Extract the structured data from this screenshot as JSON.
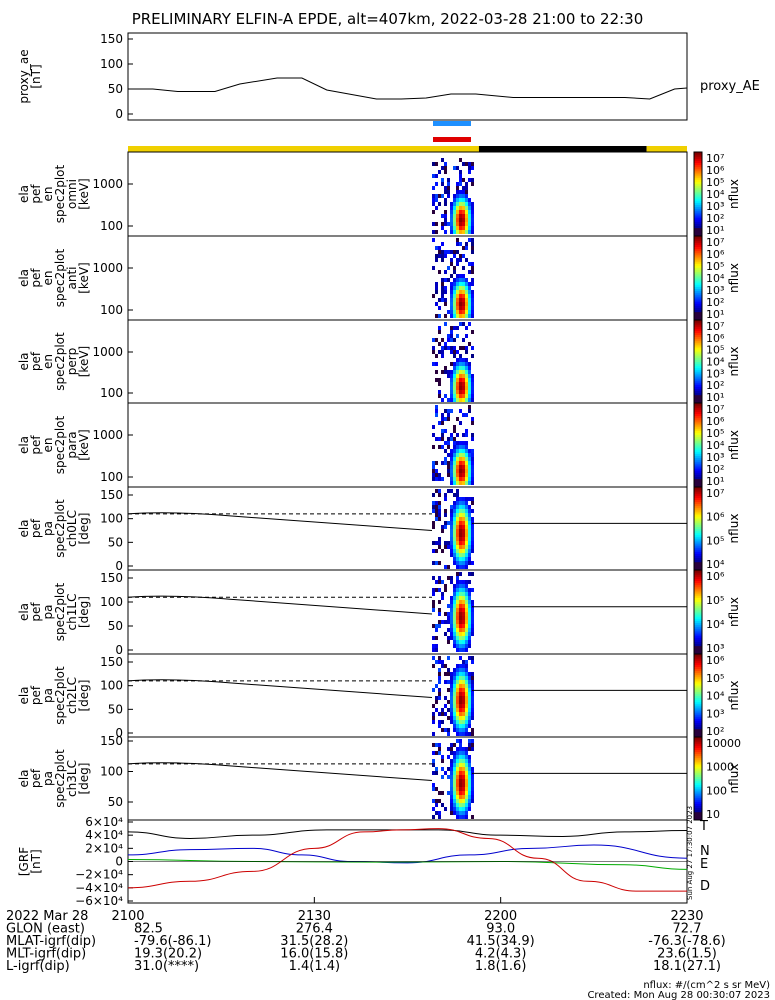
{
  "title": "PRELIMINARY ELFIN-A EPDE, alt=407km, 2022-03-28 21:00 to 22:30",
  "colors": {
    "sunlight": "#f0d000",
    "shadow": "#000000",
    "bar_blue": "#1e90ff",
    "bar_red": "#e00000"
  },
  "panels": [
    {
      "id": "ae",
      "ylabel": [
        "proxy_ae",
        "[nT]"
      ],
      "yticks": [
        "0",
        "50",
        "100",
        "150"
      ],
      "right_label": "proxy_AE"
    },
    {
      "id": "omni",
      "ylabel": [
        "ela",
        "pef",
        "en",
        "spec2plot",
        "omni",
        "[keV]"
      ],
      "yticks": [
        "100",
        "1000"
      ],
      "cbar_ticks": [
        "10¹",
        "10²",
        "10³",
        "10⁴",
        "10⁵",
        "10⁶",
        "10⁷"
      ],
      "cbar_label": "nflux"
    },
    {
      "id": "anti",
      "ylabel": [
        "ela",
        "pef",
        "en",
        "spec2plot",
        "anti",
        "[keV]"
      ],
      "yticks": [
        "100",
        "1000"
      ],
      "cbar_ticks": [
        "10¹",
        "10²",
        "10³",
        "10⁴",
        "10⁵",
        "10⁶",
        "10⁷"
      ],
      "cbar_label": "nflux"
    },
    {
      "id": "perp",
      "ylabel": [
        "ela",
        "pef",
        "en",
        "spec2plot",
        "perp",
        "[keV]"
      ],
      "yticks": [
        "100",
        "1000"
      ],
      "cbar_ticks": [
        "10¹",
        "10²",
        "10³",
        "10⁴",
        "10⁵",
        "10⁶",
        "10⁷"
      ],
      "cbar_label": "nflux"
    },
    {
      "id": "para",
      "ylabel": [
        "ela",
        "pef",
        "en",
        "spec2plot",
        "para",
        "[keV]"
      ],
      "yticks": [
        "100",
        "1000"
      ],
      "cbar_ticks": [
        "10¹",
        "10²",
        "10³",
        "10⁴",
        "10⁵",
        "10⁶",
        "10⁷"
      ],
      "cbar_label": "nflux"
    },
    {
      "id": "ch0",
      "ylabel": [
        "ela",
        "pef",
        "pa",
        "spec2plot",
        "ch0LC",
        "[deg]"
      ],
      "yticks": [
        "0",
        "50",
        "100",
        "150"
      ],
      "cbar_ticks": [
        "10⁴",
        "10⁵",
        "10⁶",
        "10⁷"
      ],
      "cbar_label": "nflux"
    },
    {
      "id": "ch1",
      "ylabel": [
        "ela",
        "pef",
        "pa",
        "spec2plot",
        "ch1LC",
        "[deg]"
      ],
      "yticks": [
        "0",
        "50",
        "100",
        "150"
      ],
      "cbar_ticks": [
        "10³",
        "10⁴",
        "10⁵",
        "10⁶"
      ],
      "cbar_label": "nflux"
    },
    {
      "id": "ch2",
      "ylabel": [
        "ela",
        "pef",
        "pa",
        "spec2plot",
        "ch2LC",
        "[deg]"
      ],
      "yticks": [
        "0",
        "50",
        "100",
        "150"
      ],
      "cbar_ticks": [
        "10²",
        "10³",
        "10⁴",
        "10⁵",
        "10⁶"
      ],
      "cbar_label": "nflux"
    },
    {
      "id": "ch3",
      "ylabel": [
        "ela",
        "pef",
        "pa",
        "spec2plot",
        "ch3LC",
        "[deg]"
      ],
      "yticks": [
        "50",
        "100",
        "150"
      ],
      "cbar_ticks": [
        "10",
        "100",
        "1000",
        "10000"
      ],
      "cbar_label": "nflux"
    },
    {
      "id": "b",
      "ylabel": [
        "[GRF",
        "[nT]"
      ],
      "yticks": [
        "−6×10⁴",
        "−4×10⁴",
        "−2×10⁴",
        "0",
        "2×10⁴",
        "4×10⁴",
        "6×10⁴"
      ],
      "legend": [
        "T",
        "N",
        "E",
        "D"
      ]
    }
  ],
  "xaxis": {
    "ticks": [
      "2100",
      "2130",
      "2200",
      "2230"
    ],
    "rows": [
      {
        "label": "2022 Mar 28",
        "vals": [
          "",
          "",
          "",
          ""
        ]
      },
      {
        "label": "GLON (east)",
        "vals": [
          "82.5",
          "276.4",
          "93.0",
          "72.7"
        ]
      },
      {
        "label": "MLAT-igrf(dip)",
        "vals": [
          "-79.6(-86.1)",
          "31.5(28.2)",
          "41.5(34.9)",
          "-76.3(-78.6)"
        ]
      },
      {
        "label": "MLT-igrf(dip)",
        "vals": [
          "19.3(20.2)",
          "16.0(15.8)",
          "4.2(4.3)",
          "23.6(1.5)"
        ]
      },
      {
        "label": "L-igrf(dip)",
        "vals": [
          "31.0(****)",
          "1.4(1.4)",
          "1.8(1.6)",
          "18.1(27.1)"
        ]
      }
    ]
  },
  "footer": {
    "units": "nflux: #/(cm^2 s sr MeV)",
    "created": "Created: Mon Aug 28 00:30:07 2023",
    "side": "Sun Aug 27 17:30:07 2023"
  },
  "chart_data": {
    "type": "line",
    "title": "PRELIMINARY ELFIN-A EPDE, alt=407km, 2022-03-28 21:00 to 22:30",
    "x_range": [
      "21:00",
      "22:30"
    ],
    "proxy_ae": {
      "x_min": [
        0,
        4,
        8,
        14,
        18,
        24,
        28,
        32,
        40,
        44,
        48,
        52,
        56,
        62,
        66,
        72,
        76,
        80,
        84,
        86,
        88,
        90
      ],
      "y": [
        50,
        50,
        45,
        45,
        60,
        72,
        72,
        48,
        30,
        30,
        32,
        40,
        40,
        33,
        33,
        33,
        33,
        33,
        30,
        40,
        50,
        52
      ],
      "ylim": [
        0,
        150
      ]
    },
    "pa_dashed_level": 110,
    "pa_solid_start": 110,
    "pa_solid_end": 75,
    "b_field": {
      "ylim": [
        -60000,
        60000
      ],
      "series": [
        {
          "name": "T",
          "color": "#000000",
          "x_min": [
            0,
            10,
            20,
            32,
            40,
            50,
            60,
            70,
            80,
            90
          ],
          "y": [
            45000,
            35000,
            40000,
            48000,
            48000,
            48000,
            40000,
            38000,
            45000,
            47000
          ]
        },
        {
          "name": "N",
          "color": "#0000cc",
          "x_min": [
            0,
            10,
            20,
            28,
            36,
            45,
            55,
            65,
            75,
            90
          ],
          "y": [
            10000,
            18000,
            20000,
            10000,
            0,
            -2000,
            10000,
            20000,
            25000,
            5000
          ]
        },
        {
          "name": "E",
          "color": "#00aa00",
          "x_min": [
            0,
            20,
            40,
            60,
            80,
            90
          ],
          "y": [
            3000,
            0,
            -1000,
            0,
            -5000,
            -12000
          ]
        },
        {
          "name": "D",
          "color": "#cc0000",
          "x_min": [
            0,
            10,
            20,
            30,
            38,
            44,
            50,
            58,
            66,
            74,
            82,
            90
          ],
          "y": [
            -40000,
            -30000,
            -15000,
            20000,
            45000,
            48000,
            50000,
            35000,
            5000,
            -30000,
            -45000,
            -45000
          ]
        }
      ]
    }
  }
}
